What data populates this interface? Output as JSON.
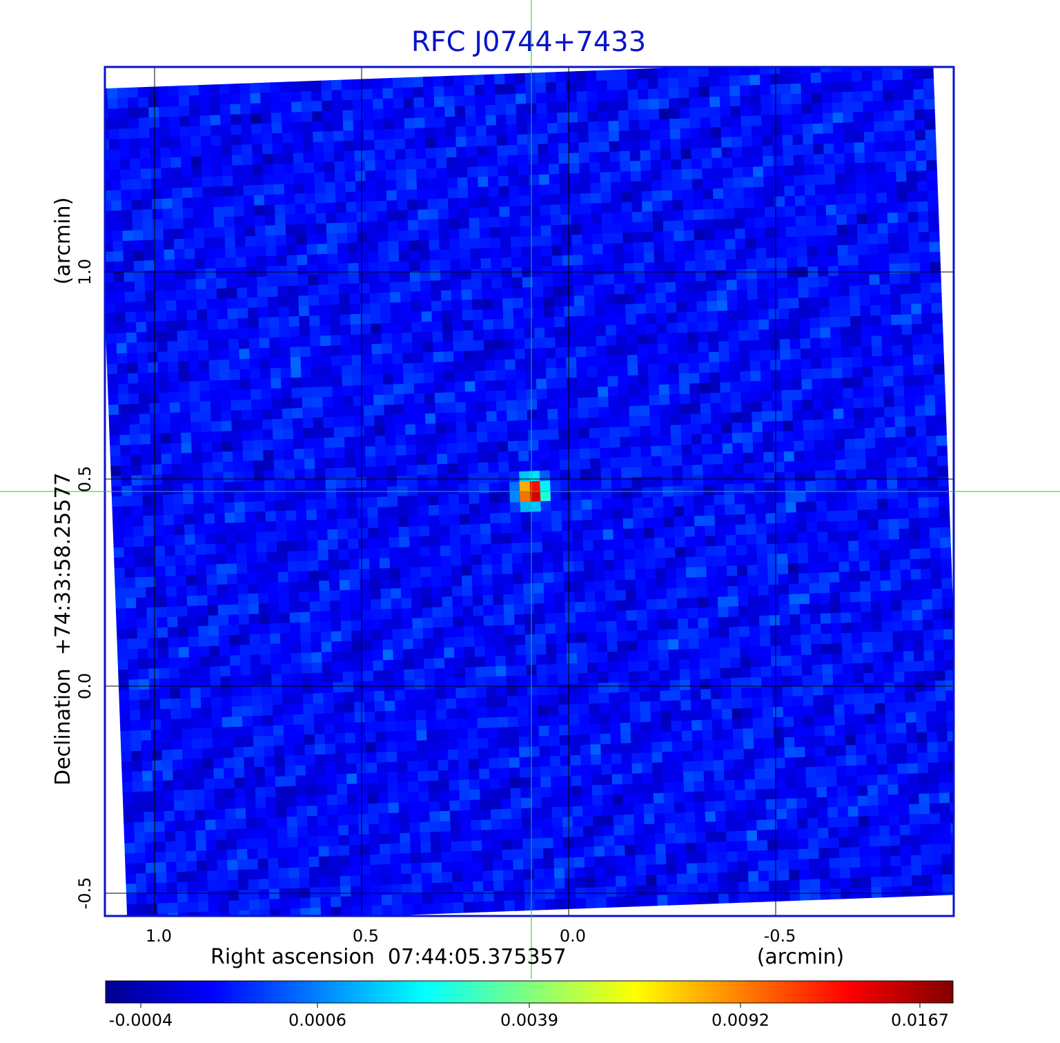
{
  "chart_data": {
    "type": "heatmap",
    "title": "RFC J0744+7433",
    "xlabel": "Right ascension  07:44:05.375357",
    "xunit": "(arcmin)",
    "ylabel": "Declination  +74:33:58.25577",
    "yunit": "(arcmin)",
    "x_ticks": [
      "1.0",
      "0.5",
      "0.0",
      "-0.5"
    ],
    "y_ticks": [
      "1.0",
      "0.5",
      "0.0",
      "-0.5"
    ],
    "xlim": [
      1.12,
      -0.93
    ],
    "ylim": [
      -0.555,
      1.495
    ],
    "x_tick_values": [
      1.0,
      0.5,
      0.0,
      -0.5
    ],
    "y_tick_values": [
      1.0,
      0.5,
      0.0,
      -0.5
    ],
    "grid": true,
    "colormap": "jet",
    "colorbar": {
      "ticks": [
        "-0.0004",
        "0.0006",
        "0.0039",
        "0.0092",
        "0.0167"
      ],
      "placement": "bottom"
    },
    "peak": {
      "x": 0.09,
      "y": 0.47,
      "value": 0.0167
    },
    "crosshair": {
      "x": 0.09,
      "y": 0.47
    },
    "background_level": -0.0001,
    "frame_color": "#0a14c8",
    "crosshair_color": "#00dd00"
  }
}
